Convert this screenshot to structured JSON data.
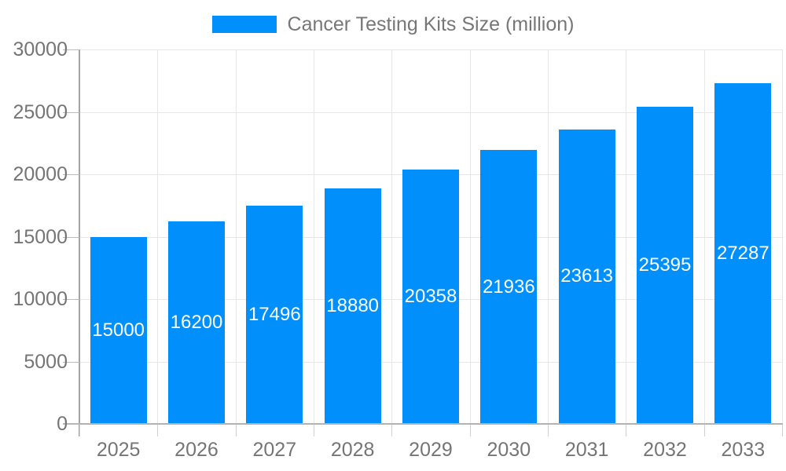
{
  "legend": {
    "label": "Cancer Testing Kits Size (million)"
  },
  "colors": {
    "bar": "#008FFB",
    "grid": "#e7e7e7",
    "axis_text": "#757575",
    "value_label": "#ffffff"
  },
  "chart_data": {
    "type": "bar",
    "title": "Cancer Testing Kits Size (million)",
    "categories": [
      "2025",
      "2026",
      "2027",
      "2028",
      "2029",
      "2030",
      "2031",
      "2032",
      "2033"
    ],
    "values": [
      15000,
      16200,
      17496,
      18880,
      20358,
      21936,
      23613,
      25395,
      27287
    ],
    "xlabel": "",
    "ylabel": "",
    "ylim": [
      0,
      30000
    ],
    "y_ticks": [
      0,
      5000,
      10000,
      15000,
      20000,
      25000,
      30000
    ],
    "grid": true,
    "legend_position": "top",
    "value_labels": "inside-center"
  }
}
